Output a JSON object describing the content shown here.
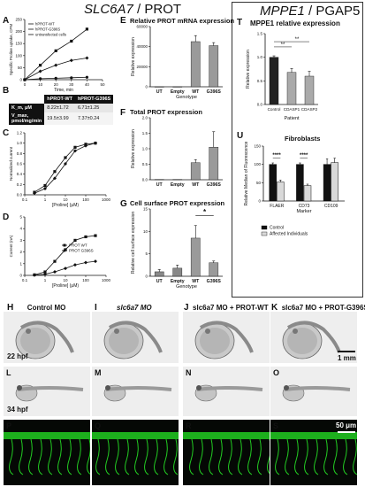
{
  "figure": {
    "left_title": {
      "gene": "SLC6A7",
      "sep": " / ",
      "protein": "PROT"
    },
    "right_title": {
      "gene": "MPPE1",
      "sep": " / ",
      "protein": "PGAP5"
    }
  },
  "panel_letters": [
    "A",
    "B",
    "C",
    "D",
    "E",
    "F",
    "G",
    "T",
    "U",
    "H",
    "I",
    "J",
    "K",
    "L",
    "M",
    "N",
    "O",
    "P",
    "Q",
    "R",
    "S"
  ],
  "colors": {
    "bar_dark": "#111111",
    "bar_mid": "#9a9a9a",
    "bar_light": "#d9d9d9",
    "fluor_green": "#22cc22",
    "embryo_bg": "#eeeeee"
  },
  "panel_A": {
    "legend": [
      "hPROT-WT",
      "hPROT-G396S",
      "untransfected cells"
    ],
    "xlabel": "Time, min",
    "ylabel": "Specific Proline uptake, CPM"
  },
  "panel_B": {
    "header": [
      "",
      "hPROT-WT",
      "hPROT-G396S"
    ],
    "rows": [
      {
        "label": "K_m, μM",
        "wt": "8.22±1.72",
        "mut": "6.71±1.25"
      },
      {
        "label": "V_max, pmol/mg/min",
        "wt": "19.5±3.99",
        "mut": "7.37±0.24"
      }
    ]
  },
  "panel_C": {
    "xlabel": "[Proline] (μM)",
    "ylabel": "Normalized current"
  },
  "panel_D": {
    "xlabel": "[Proline] (μM)",
    "ylabel": "Current (nA)",
    "legend": [
      "PROT WT",
      "PROT G396S"
    ]
  },
  "panel_E": {
    "title": "Relative PROT mRNA expression",
    "ylabel": "Relative expression",
    "xlabel": "Genotype"
  },
  "panel_F": {
    "title": "Total PROT expression",
    "ylabel": "Relative expression"
  },
  "panel_G": {
    "title": "Cell surface PROT expression",
    "ylabel": "Relative cell surface expression",
    "xlabel": "Genotype",
    "sig": "*"
  },
  "panel_T": {
    "title": "MPPE1 relative expression",
    "ylabel": "Relative expression",
    "xlabel": "Patient",
    "sig": [
      "**",
      "**"
    ]
  },
  "panel_U": {
    "title": "Fibroblasts",
    "ylabel": "Relative Median of Fluorescence",
    "xlabel": "Marker",
    "legend": [
      "Control",
      "Affected Individuals"
    ],
    "sig": [
      "****",
      "****"
    ]
  },
  "microscopy": {
    "columns": [
      "Control MO",
      "slc6a7 MO",
      "slc6a7 MO + PROT-WT",
      "slc6a7 MO + PROT-G396S"
    ],
    "row_labels": [
      "22 hpf",
      "34 hpf"
    ],
    "scale_1": "1 mm",
    "scale_2": "50 μm"
  },
  "chart_data": [
    {
      "type": "line",
      "panel": "A",
      "x": [
        0,
        10,
        20,
        30,
        40
      ],
      "series": [
        {
          "name": "hPROT-WT",
          "values": [
            0,
            60,
            120,
            160,
            210
          ]
        },
        {
          "name": "hPROT-G396S",
          "values": [
            0,
            35,
            60,
            80,
            90
          ]
        },
        {
          "name": "untransfected cells",
          "values": [
            0,
            4,
            6,
            8,
            10
          ]
        }
      ],
      "xlim": [
        0,
        50
      ],
      "ylim": [
        0,
        250
      ],
      "xticks": [
        "0",
        "10",
        "20",
        "30",
        "40",
        "50"
      ],
      "yticks": [
        "0",
        "50",
        "100",
        "150",
        "200",
        "250"
      ]
    },
    {
      "type": "line",
      "panel": "C",
      "x": [
        0.3,
        1,
        3,
        10,
        30,
        100,
        300
      ],
      "series": [
        {
          "name": "PROT WT",
          "values": [
            0.05,
            0.18,
            0.45,
            0.72,
            0.92,
            0.98,
            1.0
          ]
        },
        {
          "name": "PROT G396S",
          "values": [
            0.03,
            0.12,
            0.32,
            0.6,
            0.85,
            0.95,
            1.0
          ]
        }
      ],
      "xlim": [
        0.1,
        1000
      ],
      "ylim": [
        0,
        1.2
      ],
      "xscale": "log",
      "xticks": [
        "0.1",
        "1",
        "10",
        "100",
        "1000"
      ],
      "yticks": [
        "0.0",
        "0.2",
        "0.4",
        "0.6",
        "0.8",
        "1.0",
        "1.2"
      ]
    },
    {
      "type": "line",
      "panel": "D",
      "x": [
        0.3,
        1,
        3,
        10,
        30,
        100,
        300
      ],
      "series": [
        {
          "name": "PROT WT",
          "values": [
            0.05,
            0.3,
            1.2,
            2.2,
            3.0,
            3.3,
            3.4
          ]
        },
        {
          "name": "PROT G396S",
          "values": [
            0.02,
            0.1,
            0.3,
            0.6,
            0.9,
            1.1,
            1.2
          ]
        }
      ],
      "xlim": [
        0.1,
        1000
      ],
      "ylim": [
        0,
        5
      ],
      "xscale": "log",
      "xticks": [
        "0.1",
        "1",
        "10",
        "100",
        "1000"
      ],
      "yticks": [
        "0",
        "1",
        "2",
        "3",
        "4",
        "5"
      ]
    },
    {
      "type": "bar",
      "panel": "E",
      "categories": [
        "UT",
        "Empty",
        "WT",
        "G396S"
      ],
      "values": [
        0,
        0,
        45000,
        41000
      ],
      "errors": [
        0,
        0,
        6000,
        3000
      ],
      "ylim": [
        0,
        60000
      ],
      "yticks": [
        "0",
        "20000",
        "40000",
        "60000"
      ]
    },
    {
      "type": "bar",
      "panel": "F",
      "categories": [
        "UT",
        "Empty",
        "WT",
        "G396S"
      ],
      "values": [
        0.01,
        0.01,
        0.55,
        1.05
      ],
      "errors": [
        0,
        0,
        0.1,
        0.5
      ],
      "ylim": [
        0,
        2.0
      ],
      "yticks": [
        "0.0",
        "0.5",
        "1.0",
        "1.5",
        "2.0"
      ]
    },
    {
      "type": "bar",
      "panel": "G",
      "categories": [
        "UT",
        "Empty",
        "WT",
        "G396S"
      ],
      "values": [
        1.0,
        1.8,
        8.5,
        3.0
      ],
      "errors": [
        0.5,
        0.7,
        2.8,
        0.4
      ],
      "ylim": [
        0,
        15
      ],
      "yticks": [
        "0",
        "5",
        "10",
        "15"
      ]
    },
    {
      "type": "bar",
      "panel": "T",
      "categories": [
        "Control",
        "CDASP1",
        "CDASP2"
      ],
      "values": [
        1.0,
        0.68,
        0.6
      ],
      "errors": [
        0.03,
        0.08,
        0.1
      ],
      "ylim": [
        0,
        1.5
      ],
      "yticks": [
        "0.0",
        "0.5",
        "1.0",
        "1.5"
      ]
    },
    {
      "type": "bar",
      "panel": "U",
      "categories": [
        "FLAER",
        "CD73",
        "CD109"
      ],
      "series": [
        {
          "name": "Control",
          "values": [
            100,
            100,
            100
          ]
        },
        {
          "name": "Affected Individuals",
          "values": [
            52,
            42,
            105
          ]
        }
      ],
      "errors": [
        [
          4,
          4,
          15
        ],
        [
          5,
          4,
          12
        ]
      ],
      "ylim": [
        0,
        150
      ],
      "yticks": [
        "0",
        "50",
        "100",
        "150"
      ]
    }
  ]
}
